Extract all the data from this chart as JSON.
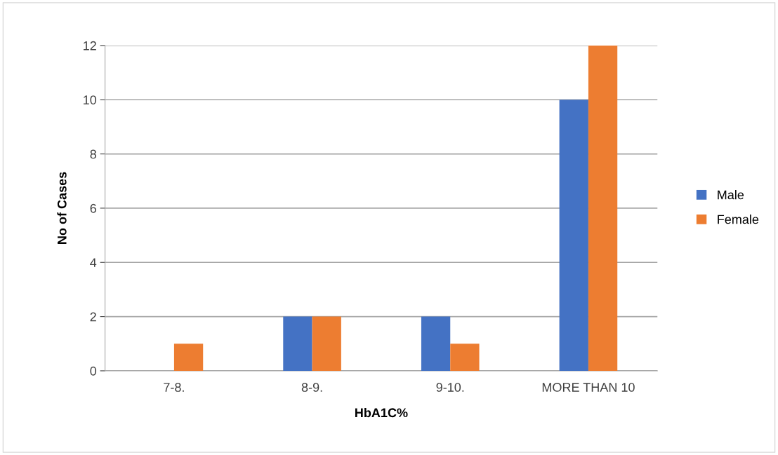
{
  "chart_data": {
    "type": "bar",
    "xlabel": "HbA1C%",
    "ylabel": "No of Cases",
    "categories": [
      "7-8.",
      "8-9.",
      "9-10.",
      "MORE THAN 10"
    ],
    "series": [
      {
        "name": "Male",
        "color": "#4472c4",
        "values": [
          0,
          2,
          2,
          10
        ]
      },
      {
        "name": "Female",
        "color": "#ed7d31",
        "values": [
          1,
          2,
          1,
          12
        ]
      }
    ],
    "ylim": [
      0,
      12
    ],
    "yticks": [
      0,
      2,
      4,
      6,
      8,
      10,
      12
    ],
    "grid": "y",
    "legend": "right"
  }
}
